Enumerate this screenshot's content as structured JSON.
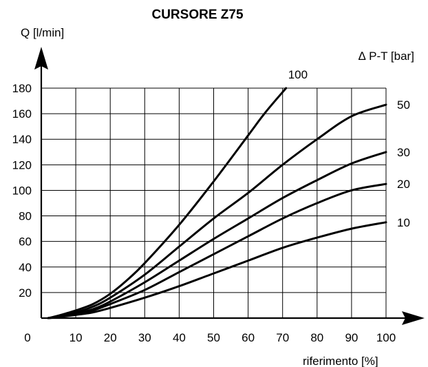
{
  "chart_data": {
    "type": "line",
    "title": "CURSORE Z75",
    "ylabel": "Q [l/min]",
    "xlabel": "riferimento [%]",
    "legend_title": "∆ P-T [bar]",
    "xlim": [
      0,
      100
    ],
    "ylim": [
      0,
      180
    ],
    "x_origin_label": "0",
    "x_ticks": [
      10,
      20,
      30,
      40,
      50,
      60,
      70,
      80,
      90,
      100
    ],
    "y_ticks": [
      20,
      40,
      60,
      80,
      100,
      120,
      140,
      160,
      180
    ],
    "grid": true,
    "series": [
      {
        "name": "10",
        "x": [
          2,
          5,
          10,
          15,
          20,
          30,
          40,
          50,
          60,
          70,
          80,
          90,
          100
        ],
        "y": [
          0,
          0.8,
          2.5,
          4.5,
          8,
          16,
          25,
          35,
          45,
          55,
          63,
          70,
          75
        ]
      },
      {
        "name": "20",
        "x": [
          2,
          5,
          10,
          15,
          20,
          30,
          40,
          50,
          60,
          70,
          80,
          90,
          100
        ],
        "y": [
          0,
          1,
          3,
          6,
          11,
          22,
          36,
          50,
          64,
          78,
          90,
          100,
          105
        ]
      },
      {
        "name": "30",
        "x": [
          2,
          5,
          10,
          15,
          20,
          30,
          40,
          50,
          60,
          70,
          80,
          90,
          100
        ],
        "y": [
          0,
          1.2,
          3.5,
          7,
          13,
          28,
          45,
          62,
          78,
          94,
          108,
          121,
          130
        ]
      },
      {
        "name": "50",
        "x": [
          2,
          5,
          10,
          15,
          20,
          30,
          40,
          50,
          60,
          70,
          80,
          90,
          100
        ],
        "y": [
          0,
          1.5,
          4.5,
          9,
          16,
          34,
          56,
          78,
          98,
          120,
          140,
          158,
          167
        ]
      },
      {
        "name": "100",
        "x": [
          2,
          5,
          10,
          15,
          20,
          25,
          30,
          40,
          50,
          60,
          65,
          71
        ],
        "y": [
          0,
          2,
          6,
          11,
          19,
          30,
          43,
          73,
          107,
          143,
          161,
          180
        ]
      }
    ]
  }
}
